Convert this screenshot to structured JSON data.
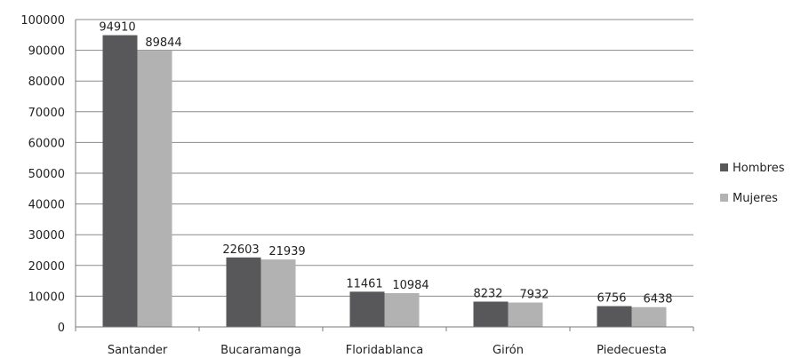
{
  "chart_data": {
    "type": "bar",
    "categories": [
      "Santander",
      "Bucaramanga",
      "Floridablanca",
      "Girón",
      "Piedecuesta"
    ],
    "series": [
      {
        "name": "Hombres",
        "values": [
          94910,
          22603,
          11461,
          8232,
          6756
        ],
        "color": "#58585a"
      },
      {
        "name": "Mujeres",
        "values": [
          89844,
          21939,
          10984,
          7932,
          6438
        ],
        "color": "#b2b2b2"
      }
    ],
    "ylim": [
      0,
      100000
    ],
    "yticks": [
      0,
      10000,
      20000,
      30000,
      40000,
      50000,
      60000,
      70000,
      80000,
      90000,
      100000
    ],
    "grid": true,
    "legend": "right",
    "data_labels": true
  }
}
